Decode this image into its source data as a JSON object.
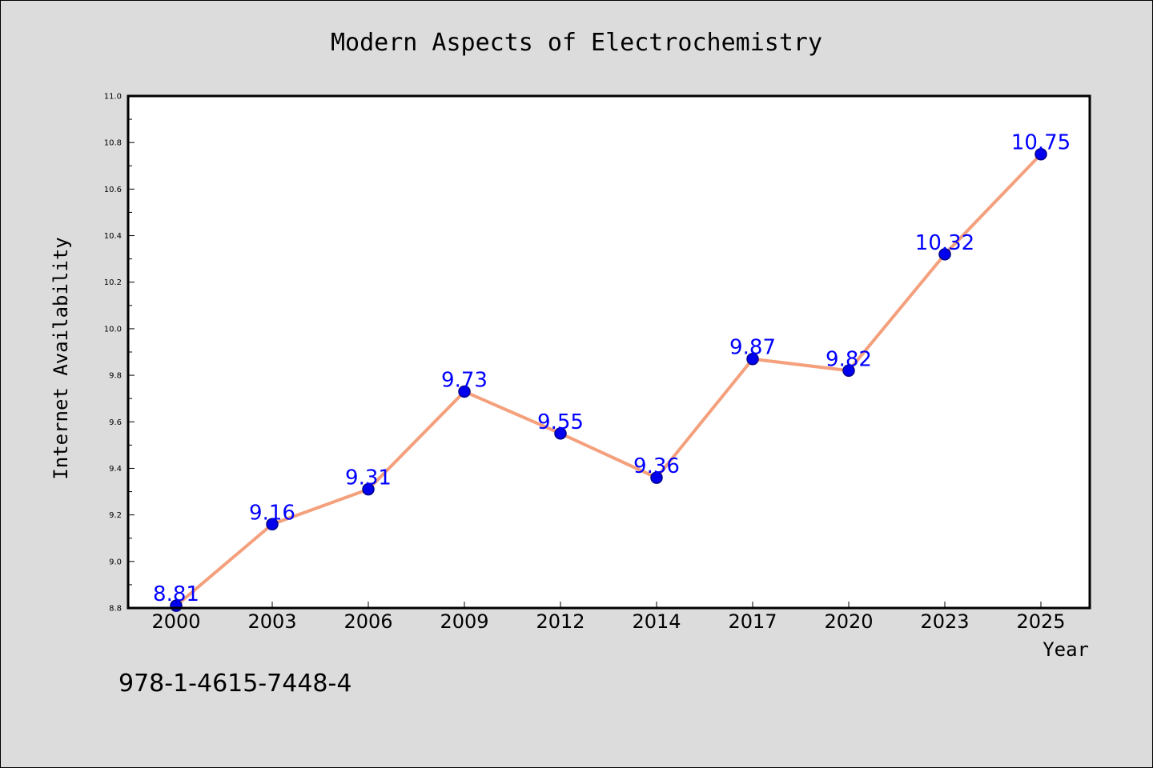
{
  "chart_data": {
    "type": "line",
    "title": "Modern Aspects of Electrochemistry",
    "xlabel": "Year",
    "ylabel": "Internet Availability",
    "categories": [
      "2000",
      "2003",
      "2006",
      "2009",
      "2012",
      "2014",
      "2017",
      "2020",
      "2023",
      "2025"
    ],
    "values": [
      8.81,
      9.16,
      9.31,
      9.73,
      9.55,
      9.36,
      9.87,
      9.82,
      10.32,
      10.75
    ],
    "data_labels": [
      "8.81",
      "9.16",
      "9.31",
      "9.73",
      "9.55",
      "9.36",
      "9.87",
      "9.82",
      "10.32",
      "10.75"
    ],
    "ylim": [
      8.8,
      11.0
    ],
    "yticks": [
      "8.8",
      "9.0",
      "9.2",
      "9.4",
      "9.6",
      "9.8",
      "10.0",
      "10.2",
      "10.4",
      "10.6",
      "10.8",
      "11.0"
    ],
    "grid": false,
    "legend": "none",
    "colors": {
      "line": "#f4a07c",
      "marker_fill": "#0000ee",
      "marker_edge": "#00008b",
      "data_label": "#0000ff",
      "background": "#dcdcdc",
      "plot_background": "#ffffff"
    }
  },
  "footer": {
    "text": "978-1-4615-7448-4"
  }
}
